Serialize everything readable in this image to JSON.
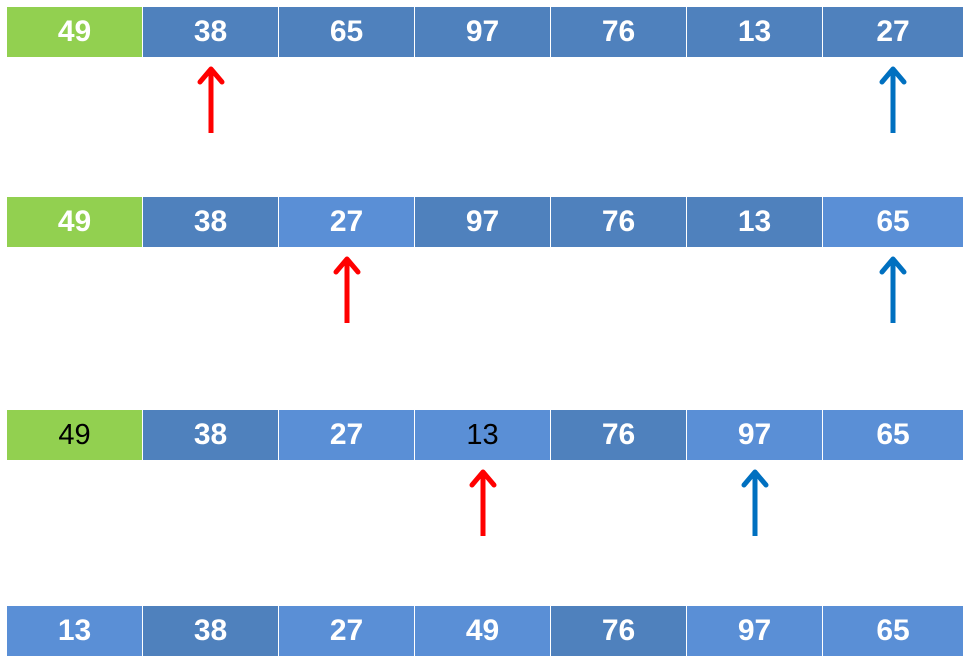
{
  "colors": {
    "pivot": "#92d050",
    "dark": "#4f81bd",
    "light": "#5a8fd6",
    "text_white": "#ffffff",
    "text_black": "#000000",
    "pointer_low": "#ff0000",
    "pointer_high": "#0070c0"
  },
  "rows": [
    {
      "cells": [
        {
          "value": "49",
          "style": "pivot"
        },
        {
          "value": "38",
          "style": "dark"
        },
        {
          "value": "65",
          "style": "dark"
        },
        {
          "value": "97",
          "style": "dark"
        },
        {
          "value": "76",
          "style": "dark"
        },
        {
          "value": "13",
          "style": "dark"
        },
        {
          "value": "27",
          "style": "dark"
        }
      ],
      "low_pointer_index": 1,
      "high_pointer_index": 6
    },
    {
      "cells": [
        {
          "value": "49",
          "style": "pivot"
        },
        {
          "value": "38",
          "style": "dark"
        },
        {
          "value": "27",
          "style": "light"
        },
        {
          "value": "97",
          "style": "dark"
        },
        {
          "value": "76",
          "style": "dark"
        },
        {
          "value": "13",
          "style": "dark"
        },
        {
          "value": "65",
          "style": "light"
        }
      ],
      "low_pointer_index": 2,
      "high_pointer_index": 6
    },
    {
      "cells": [
        {
          "value": "49",
          "style": "pivot",
          "plain": true
        },
        {
          "value": "38",
          "style": "dark"
        },
        {
          "value": "27",
          "style": "light"
        },
        {
          "value": "13",
          "style": "light",
          "plain": true
        },
        {
          "value": "76",
          "style": "dark"
        },
        {
          "value": "97",
          "style": "light"
        },
        {
          "value": "65",
          "style": "light"
        }
      ],
      "low_pointer_index": 3,
      "high_pointer_index": 5
    },
    {
      "cells": [
        {
          "value": "13",
          "style": "light"
        },
        {
          "value": "38",
          "style": "dark"
        },
        {
          "value": "27",
          "style": "light"
        },
        {
          "value": "49",
          "style": "light"
        },
        {
          "value": "76",
          "style": "dark"
        },
        {
          "value": "97",
          "style": "light"
        },
        {
          "value": "65",
          "style": "light"
        }
      ]
    }
  ]
}
